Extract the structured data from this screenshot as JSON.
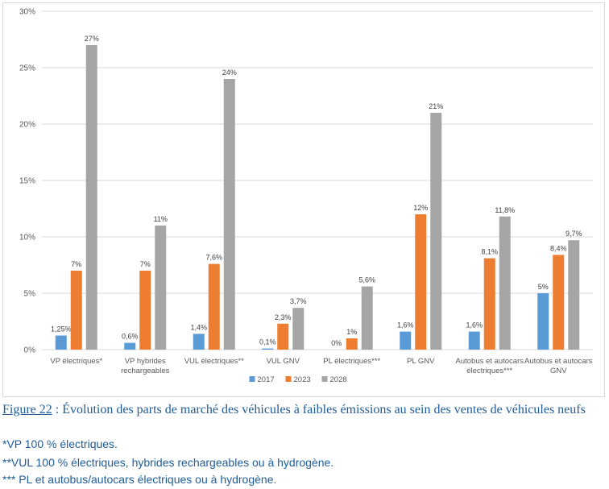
{
  "chart_data": {
    "type": "bar",
    "categories": [
      [
        "VP électriques*"
      ],
      [
        "VP hybrides",
        "rechargeables"
      ],
      [
        "VUL électriques**"
      ],
      [
        "VUL GNV"
      ],
      [
        "PL électriques***"
      ],
      [
        "PL GNV"
      ],
      [
        "Autobus et autocars",
        "électriques***"
      ],
      [
        "Autobus et autocars",
        "GNV"
      ]
    ],
    "series": [
      {
        "name": "2017",
        "color": "#5b9bd5",
        "values": [
          1.25,
          0.6,
          1.4,
          0.1,
          0,
          1.6,
          1.6,
          5
        ],
        "labels": [
          "1,25%",
          "0,6%",
          "1,4%",
          "0,1%",
          "0%",
          "1,6%",
          "1,6%",
          "5%"
        ]
      },
      {
        "name": "2023",
        "color": "#ed7d31",
        "values": [
          7,
          7,
          7.6,
          2.3,
          1,
          12,
          8.1,
          8.4
        ],
        "labels": [
          "7%",
          "7%",
          "7,6%",
          "2,3%",
          "1%",
          "12%",
          "8,1%",
          "8,4%"
        ]
      },
      {
        "name": "2028",
        "color": "#a5a5a5",
        "values": [
          27,
          11,
          24,
          3.7,
          5.6,
          21,
          11.8,
          9.7
        ],
        "labels": [
          "27%",
          "11%",
          "24%",
          "3,7%",
          "5,6%",
          "21%",
          "11,8%",
          "9,7%"
        ]
      }
    ],
    "ylim": [
      0,
      30
    ],
    "yticks": [
      0,
      5,
      10,
      15,
      20,
      25,
      30
    ],
    "ytick_labels": [
      "0%",
      "5%",
      "10%",
      "15%",
      "20%",
      "25%",
      "30%"
    ],
    "grid": true,
    "legend": "bottom-center"
  },
  "caption": {
    "ref": "Figure 22",
    "text": " : Évolution des parts de marché des véhicules à faibles émissions au sein des ventes de véhicules neufs"
  },
  "notes": [
    "*VP 100 % électriques.",
    "**VUL 100 % électriques, hybrides rechargeables ou à hydrogène.",
    "*** PL et autobus/autocars électriques ou à hydrogène."
  ]
}
